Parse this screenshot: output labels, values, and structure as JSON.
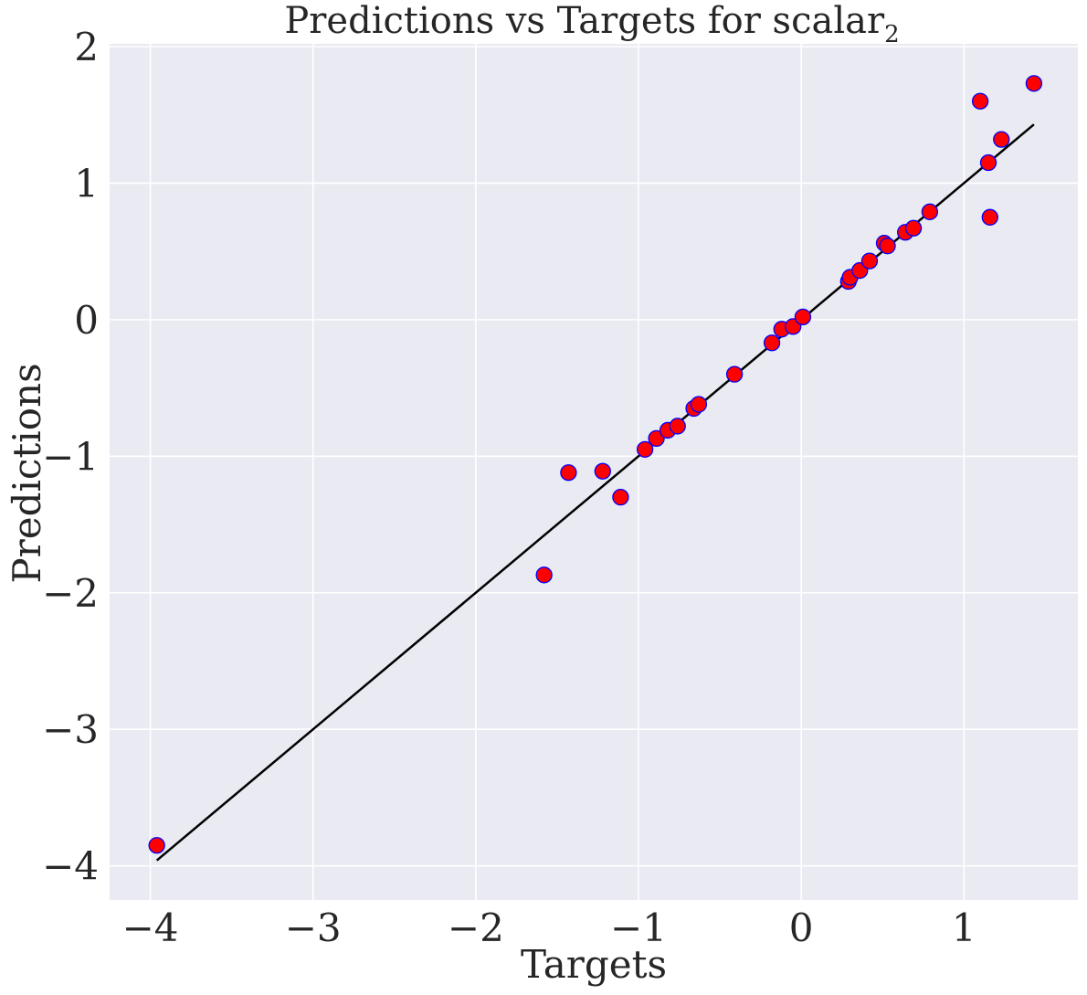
{
  "chart_data": {
    "type": "scatter",
    "title": "Predictions vs Targets for scalar",
    "title_subscript": "2",
    "xlabel": "Targets",
    "ylabel": "Predictions",
    "xlim": [
      -4.25,
      1.7
    ],
    "ylim": [
      -4.25,
      2.02
    ],
    "xticks": [
      -4,
      -3,
      -2,
      -1,
      0,
      1
    ],
    "xtick_labels": [
      "−4",
      "−3",
      "−2",
      "−1",
      "0",
      "1"
    ],
    "yticks": [
      -4,
      -3,
      -2,
      -1,
      0,
      1,
      2
    ],
    "ytick_labels": [
      "−4",
      "−3",
      "−2",
      "−1",
      "0",
      "1",
      "2"
    ],
    "grid": true,
    "colors": {
      "background": "#EAEAF2",
      "grid": "#FFFFFF",
      "point_fill": "#FF0000",
      "point_edge": "#0000FF",
      "line": "#000000"
    },
    "reference_line": {
      "x": [
        -3.96,
        1.43
      ],
      "y": [
        -3.96,
        1.43
      ]
    },
    "points": [
      {
        "x": -3.96,
        "y": -3.85
      },
      {
        "x": -1.58,
        "y": -1.87
      },
      {
        "x": -1.43,
        "y": -1.12
      },
      {
        "x": -1.22,
        "y": -1.11
      },
      {
        "x": -1.11,
        "y": -1.3
      },
      {
        "x": -0.96,
        "y": -0.95
      },
      {
        "x": -0.89,
        "y": -0.87
      },
      {
        "x": -0.82,
        "y": -0.81
      },
      {
        "x": -0.76,
        "y": -0.78
      },
      {
        "x": -0.66,
        "y": -0.65
      },
      {
        "x": -0.63,
        "y": -0.62
      },
      {
        "x": -0.41,
        "y": -0.4
      },
      {
        "x": -0.18,
        "y": -0.17
      },
      {
        "x": -0.12,
        "y": -0.07
      },
      {
        "x": -0.05,
        "y": -0.05
      },
      {
        "x": 0.01,
        "y": 0.02
      },
      {
        "x": 0.29,
        "y": 0.28
      },
      {
        "x": 0.3,
        "y": 0.31
      },
      {
        "x": 0.36,
        "y": 0.36
      },
      {
        "x": 0.42,
        "y": 0.43
      },
      {
        "x": 0.51,
        "y": 0.56
      },
      {
        "x": 0.53,
        "y": 0.54
      },
      {
        "x": 0.64,
        "y": 0.64
      },
      {
        "x": 0.69,
        "y": 0.67
      },
      {
        "x": 0.79,
        "y": 0.79
      },
      {
        "x": 1.1,
        "y": 1.6
      },
      {
        "x": 1.15,
        "y": 1.15
      },
      {
        "x": 1.16,
        "y": 0.75
      },
      {
        "x": 1.23,
        "y": 1.32
      },
      {
        "x": 1.43,
        "y": 1.73
      }
    ]
  }
}
